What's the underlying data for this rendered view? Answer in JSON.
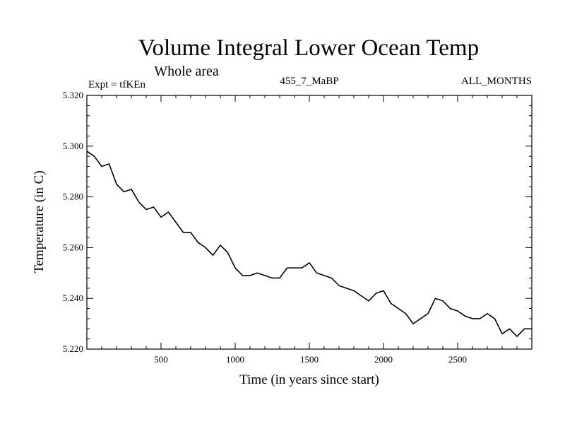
{
  "chart_data": {
    "type": "line",
    "title": "Volume Integral Lower Ocean Temp",
    "subtitle": "Whole area",
    "annotations": {
      "left": "Expt = tfKEn",
      "center": "455_7_MaBP",
      "right": "ALL_MONTHS"
    },
    "xlabel": "Time (in years since start)",
    "ylabel": "Temperature (in C)",
    "xlim": [
      0,
      3000
    ],
    "ylim": [
      5.22,
      5.32
    ],
    "xticks": [
      500,
      1000,
      1500,
      2000,
      2500
    ],
    "xtick_labels": [
      "500",
      "1000",
      "1500",
      "2000",
      "2500"
    ],
    "yticks": [
      5.22,
      5.24,
      5.26,
      5.28,
      5.3,
      5.32
    ],
    "ytick_labels": [
      "5.220",
      "5.240",
      "5.260",
      "5.280",
      "5.300",
      "5.320"
    ],
    "grid": false,
    "line_color": "#000000",
    "x": [
      0,
      50,
      100,
      150,
      200,
      250,
      300,
      350,
      400,
      450,
      500,
      550,
      600,
      650,
      700,
      750,
      800,
      850,
      900,
      950,
      1000,
      1050,
      1100,
      1150,
      1200,
      1250,
      1300,
      1350,
      1400,
      1450,
      1500,
      1550,
      1600,
      1650,
      1700,
      1750,
      1800,
      1850,
      1900,
      1950,
      2000,
      2050,
      2100,
      2150,
      2200,
      2250,
      2300,
      2350,
      2400,
      2450,
      2500,
      2550,
      2600,
      2650,
      2700,
      2750,
      2800,
      2850,
      2900,
      2950,
      3000
    ],
    "y": [
      5.298,
      5.296,
      5.292,
      5.293,
      5.285,
      5.282,
      5.283,
      5.278,
      5.275,
      5.276,
      5.272,
      5.274,
      5.27,
      5.266,
      5.266,
      5.262,
      5.26,
      5.257,
      5.261,
      5.258,
      5.252,
      5.249,
      5.249,
      5.25,
      5.249,
      5.248,
      5.248,
      5.252,
      5.252,
      5.252,
      5.254,
      5.25,
      5.249,
      5.248,
      5.245,
      5.244,
      5.243,
      5.241,
      5.239,
      5.242,
      5.243,
      5.238,
      5.236,
      5.234,
      5.23,
      5.232,
      5.234,
      5.24,
      5.239,
      5.236,
      5.235,
      5.233,
      5.232,
      5.232,
      5.234,
      5.232,
      5.226,
      5.228,
      5.225,
      5.228,
      5.228
    ]
  }
}
